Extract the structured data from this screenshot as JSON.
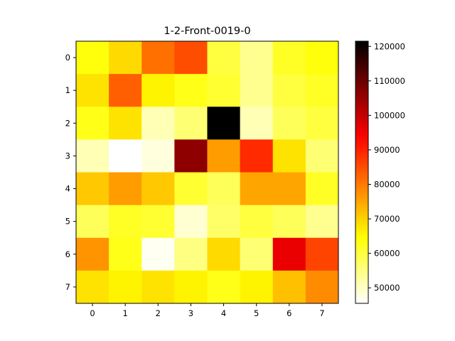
{
  "chart_data": {
    "type": "heatmap",
    "title": "1-2-Front-0019-0",
    "xlabel": "",
    "ylabel": "",
    "x_ticks": [
      "0",
      "1",
      "2",
      "3",
      "4",
      "5",
      "6",
      "7"
    ],
    "y_ticks": [
      "0",
      "1",
      "2",
      "3",
      "4",
      "5",
      "6",
      "7"
    ],
    "colormap": "hot_r",
    "vmin": 45500,
    "vmax": 121500,
    "colorbar_ticks": [
      50000,
      60000,
      70000,
      80000,
      90000,
      100000,
      110000,
      120000
    ],
    "colorbar_tick_labels": [
      "50000",
      "60000",
      "70000",
      "80000",
      "90000",
      "100000",
      "110000",
      "120000"
    ],
    "values": [
      [
        64000,
        69000,
        81000,
        85000,
        60000,
        54000,
        62000,
        64000
      ],
      [
        68000,
        83000,
        66000,
        63000,
        61000,
        54000,
        60000,
        62000
      ],
      [
        63000,
        68000,
        51000,
        56000,
        121500,
        51000,
        58000,
        60000
      ],
      [
        51000,
        45500,
        48000,
        106000,
        76000,
        89000,
        68000,
        56000
      ],
      [
        71000,
        76000,
        71000,
        61000,
        58000,
        75000,
        75000,
        62000
      ],
      [
        58000,
        62000,
        61000,
        49000,
        57000,
        60000,
        58000,
        54000
      ],
      [
        77000,
        63000,
        46500,
        55000,
        69000,
        56000,
        96000,
        86000
      ],
      [
        68000,
        66000,
        68000,
        66000,
        63000,
        66000,
        72000,
        78000
      ]
    ]
  }
}
